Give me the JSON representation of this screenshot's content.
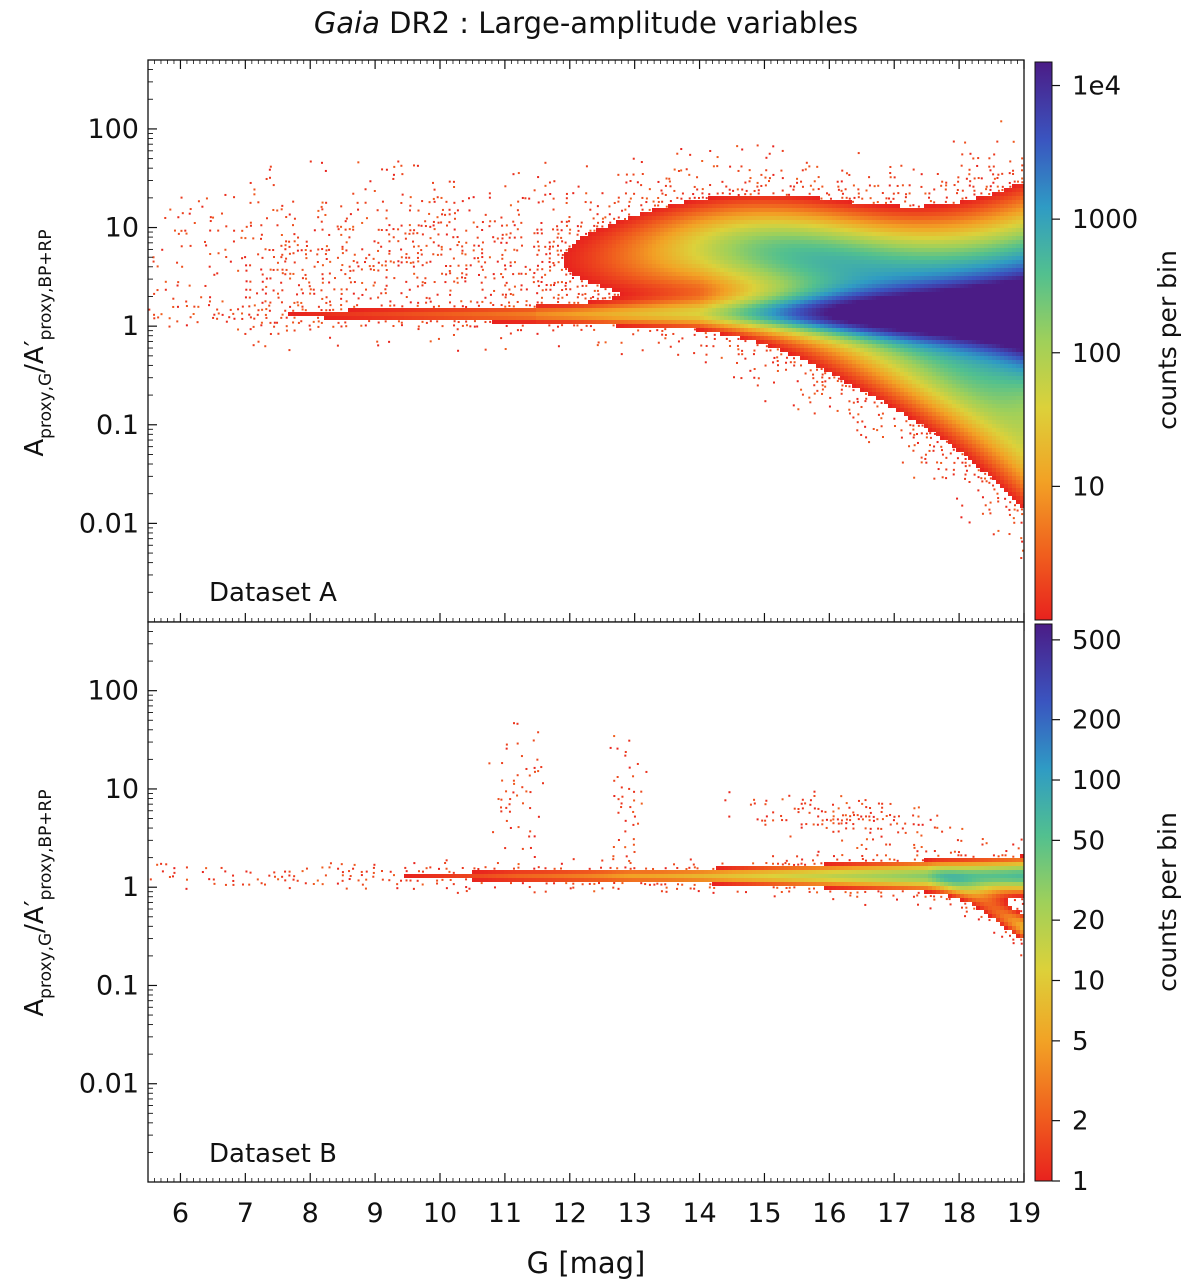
{
  "figure": {
    "title_italic": "Gaia",
    "title_rest": " DR2 :  Large-amplitude variables"
  },
  "chart_data": [
    {
      "type": "heatmap",
      "panel_label": "Dataset A",
      "xlabel": "G  [mag]",
      "xlim": [
        5.5,
        19.0
      ],
      "xticks": [
        6,
        7,
        8,
        9,
        10,
        11,
        12,
        13,
        14,
        15,
        16,
        17,
        18,
        19
      ],
      "ylabel": "A_proxy,G / A'_proxy,BP+RP",
      "ylabel_parts": {
        "a": "A",
        "sub1": "proxy,G",
        "slash": "/A′",
        "sub2": "proxy,BP+RP"
      },
      "yscale": "log",
      "ylim": [
        0.001,
        500
      ],
      "yticks": [
        0.01,
        0.1,
        1,
        10,
        100
      ],
      "ytick_labels": [
        "0.01",
        "0.1",
        "1",
        "10",
        "100"
      ],
      "colorbar": {
        "label": "counts per bin",
        "scale": "log",
        "range": [
          1,
          15000
        ],
        "ticks": [
          10,
          100,
          1000,
          10000
        ],
        "tick_labels": [
          "10",
          "100",
          "1000",
          "1e4"
        ]
      },
      "density_model": {
        "core_ratio": 1.3,
        "description": "narrow core near ratio 1.3 for G 6-18; broad fan at ratio 2-30 for G 12-17; divergence toward both high and low ratios at G>17; peak near G=19, ratio ~0.7"
      }
    },
    {
      "type": "heatmap",
      "panel_label": "Dataset B",
      "xlabel": "G  [mag]",
      "xlim": [
        5.5,
        19.0
      ],
      "xticks": [
        6,
        7,
        8,
        9,
        10,
        11,
        12,
        13,
        14,
        15,
        16,
        17,
        18,
        19
      ],
      "ylabel": "A_proxy,G / A'_proxy,BP+RP",
      "ylabel_parts": {
        "a": "A",
        "sub1": "proxy,G",
        "slash": "/A′",
        "sub2": "proxy,BP+RP"
      },
      "yscale": "log",
      "ylim": [
        0.001,
        500
      ],
      "yticks": [
        0.01,
        0.1,
        1,
        10,
        100
      ],
      "ytick_labels": [
        "0.01",
        "0.1",
        "1",
        "10",
        "100"
      ],
      "colorbar": {
        "label": "counts per bin",
        "scale": "log",
        "range": [
          1,
          600
        ],
        "ticks": [
          1,
          2,
          5,
          10,
          20,
          50,
          100,
          200,
          500
        ],
        "tick_labels": [
          "1",
          "2",
          "5",
          "10",
          "20",
          "50",
          "100",
          "200",
          "500"
        ]
      },
      "density_model": {
        "core_ratio": 1.3,
        "description": "narrow band around ratio 1.3 across all G; sparse clumps near G=11 and G=13 at ratio 3-20; sparse arm G 15-17.5 at ratio 2-8; spreads downward near G=19"
      }
    }
  ]
}
